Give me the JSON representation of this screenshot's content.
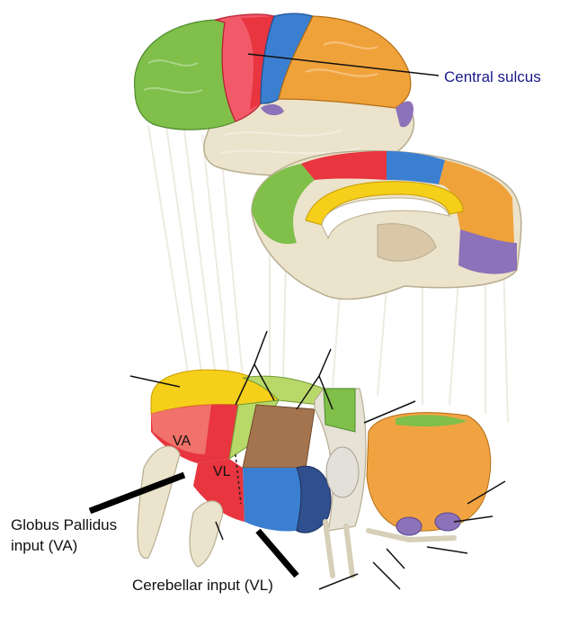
{
  "labels": {
    "central_sulcus": "Central sulcus",
    "va": "VA",
    "vl": "VL",
    "globus_pallidus_line1": "Globus Pallidus",
    "globus_pallidus_line2": "input (VA)",
    "cerebellar_input": "Cerebellar input (VL)"
  },
  "colors": {
    "central_sulcus_text": "#1a1a8c",
    "label_text": "#111111",
    "prefrontal_green": "#7fbf4a",
    "premotor_red": "#e8353f",
    "motor_pink": "#f25a6a",
    "somatosensory_blue": "#3b7fd0",
    "parietal_orange": "#f0a23a",
    "cingulate_yellow": "#f5cf1a",
    "visual_purple": "#8c72b8",
    "temporal_cream": "#ece3cc",
    "thalamus_brown": "#a4744e",
    "thalamus_lightgreen": "#b9d86a",
    "pulvinar_orange": "#f2a341"
  }
}
